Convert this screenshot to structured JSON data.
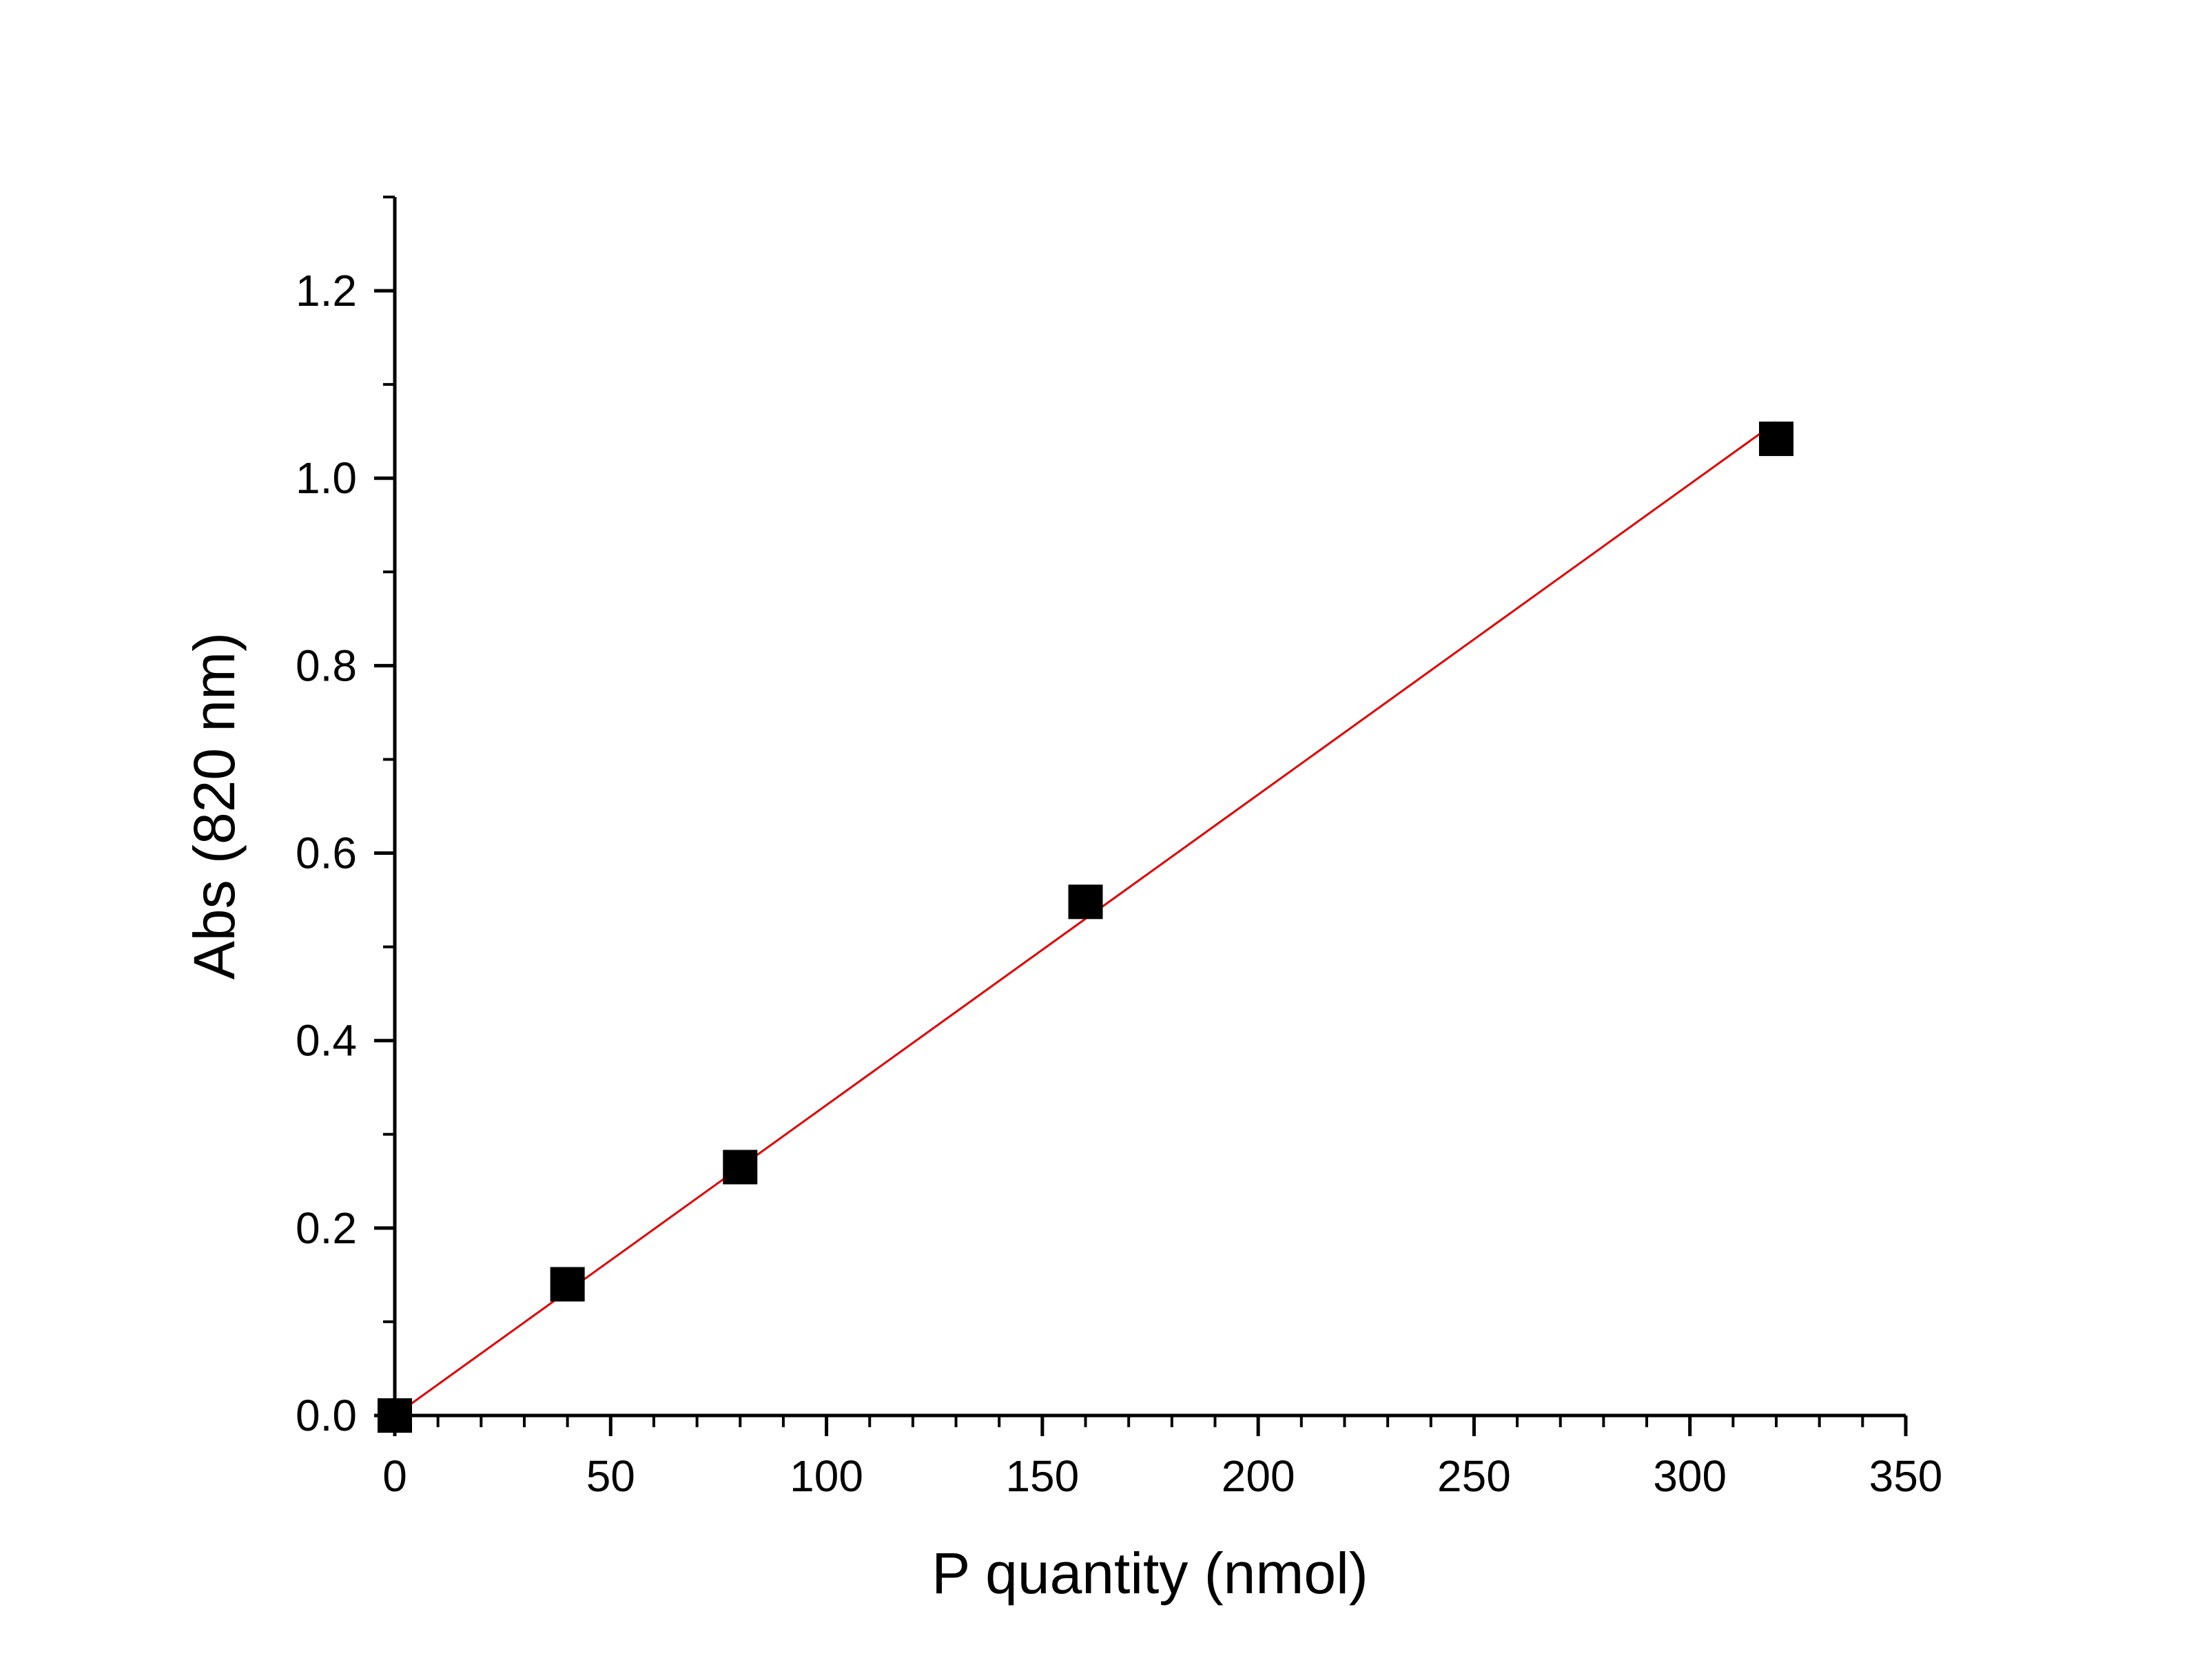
{
  "chart_data": {
    "type": "scatter",
    "title": "",
    "xlabel": "P quantity (nmol)",
    "ylabel": "Abs (820 nm)",
    "xlim": [
      0,
      350
    ],
    "ylim": [
      0,
      1.3
    ],
    "x_ticks": [
      "0",
      "50",
      "100",
      "150",
      "200",
      "250",
      "300",
      "350"
    ],
    "y_ticks": [
      "0.0",
      "0.2",
      "0.4",
      "0.6",
      "0.8",
      "1.0",
      "1.2"
    ],
    "grid": false,
    "legend": "none",
    "series": [
      {
        "marker": "square",
        "color": "#000000",
        "points": [
          {
            "x": 0,
            "y": 0.0
          },
          {
            "x": 40,
            "y": 0.14
          },
          {
            "x": 80,
            "y": 0.265
          },
          {
            "x": 160,
            "y": 0.548
          },
          {
            "x": 320,
            "y": 1.042
          }
        ]
      }
    ],
    "fit_line": {
      "type": "linear",
      "color": "#e00000",
      "x_start": 0,
      "x_end": 320,
      "y_start": 0.0,
      "y_end": 1.06
    }
  }
}
